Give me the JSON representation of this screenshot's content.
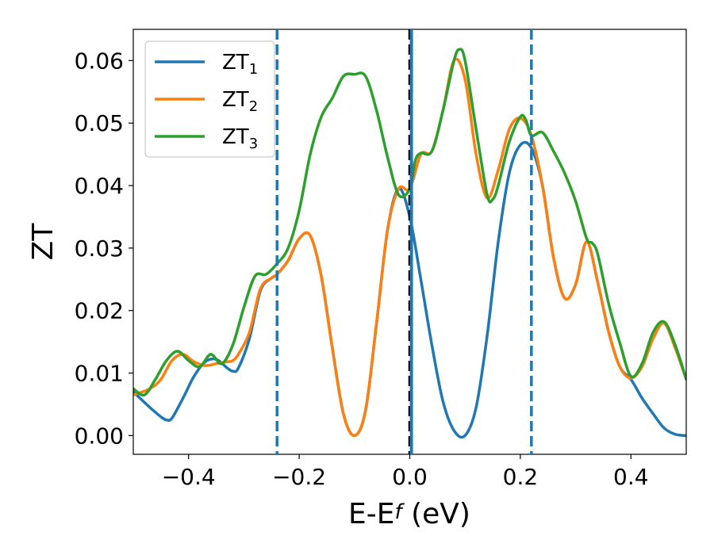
{
  "chart_data": {
    "type": "line",
    "title": "",
    "xlabel": {
      "main": "E-E",
      "sub": "f",
      "unit": " (eV)"
    },
    "ylabel": "ZT",
    "xlim": [
      -0.5,
      0.5
    ],
    "ylim": [
      -0.003,
      0.065
    ],
    "x_ticks": [
      -0.4,
      -0.2,
      0.0,
      0.2,
      0.4
    ],
    "x_tick_labels": [
      "−0.4",
      "−0.2",
      "0.0",
      "0.2",
      "0.4"
    ],
    "y_ticks": [
      0.0,
      0.01,
      0.02,
      0.03,
      0.04,
      0.05,
      0.06
    ],
    "y_tick_labels": [
      "0.00",
      "0.01",
      "0.02",
      "0.03",
      "0.04",
      "0.05",
      "0.06"
    ],
    "grid": false,
    "legend_position": "top-left",
    "vertical_lines": [
      {
        "x": -0.24,
        "color": "#1f77b4",
        "style": "dashed"
      },
      {
        "x": 0.0,
        "color": "#000000",
        "style": "dashed"
      },
      {
        "x": 0.003,
        "color": "#1f77b4",
        "style": "solid"
      },
      {
        "x": 0.22,
        "color": "#1f77b4",
        "style": "dashed"
      }
    ],
    "series": [
      {
        "name": "ZT",
        "sub": "1",
        "color": "#1f77b4",
        "x": [
          -0.5,
          -0.47,
          -0.45,
          -0.44,
          -0.43,
          -0.41,
          -0.39,
          -0.37,
          -0.35,
          -0.33,
          -0.32,
          -0.31,
          -0.29,
          -0.27,
          -0.25,
          -0.24,
          -0.22,
          -0.2,
          -0.18,
          -0.16,
          -0.14,
          -0.12,
          -0.1,
          -0.08,
          -0.06,
          -0.04,
          -0.02,
          0.0,
          0.02,
          0.04,
          0.06,
          0.08,
          0.1,
          0.12,
          0.14,
          0.16,
          0.18,
          0.2,
          0.22,
          0.24,
          0.26,
          0.28,
          0.3,
          0.32,
          0.34,
          0.36,
          0.38,
          0.4,
          0.42,
          0.44,
          0.46,
          0.48,
          0.5
        ],
        "y": [
          0.007,
          0.0045,
          0.003,
          0.0025,
          0.0028,
          0.006,
          0.0095,
          0.0118,
          0.0122,
          0.0108,
          0.0103,
          0.0108,
          0.0155,
          0.0232,
          0.0252,
          0.0258,
          0.028,
          0.0315,
          0.032,
          0.0255,
          0.014,
          0.0035,
          0.0,
          0.004,
          0.018,
          0.033,
          0.0395,
          0.035,
          0.025,
          0.0145,
          0.0055,
          0.0008,
          0.0,
          0.0045,
          0.016,
          0.031,
          0.042,
          0.0465,
          0.046,
          0.04,
          0.0285,
          0.022,
          0.0242,
          0.031,
          0.0245,
          0.0165,
          0.011,
          0.009,
          0.006,
          0.0035,
          0.0012,
          0.0002,
          0.0
        ]
      },
      {
        "name": "ZT",
        "sub": "2",
        "color": "#ff7f0e",
        "x": [
          -0.5,
          -0.47,
          -0.45,
          -0.43,
          -0.41,
          -0.39,
          -0.37,
          -0.35,
          -0.33,
          -0.32,
          -0.31,
          -0.29,
          -0.27,
          -0.25,
          -0.24,
          -0.22,
          -0.2,
          -0.18,
          -0.16,
          -0.14,
          -0.12,
          -0.1,
          -0.08,
          -0.06,
          -0.04,
          -0.02,
          0.0,
          0.02,
          0.04,
          0.06,
          0.08,
          0.1,
          0.12,
          0.14,
          0.16,
          0.18,
          0.2,
          0.22,
          0.24,
          0.26,
          0.28,
          0.3,
          0.32,
          0.34,
          0.36,
          0.38,
          0.4,
          0.42,
          0.44,
          0.46,
          0.48,
          0.5
        ],
        "y": [
          0.0065,
          0.0075,
          0.009,
          0.012,
          0.013,
          0.0118,
          0.0112,
          0.0115,
          0.0118,
          0.012,
          0.013,
          0.0165,
          0.0235,
          0.0252,
          0.0258,
          0.028,
          0.0315,
          0.032,
          0.0255,
          0.014,
          0.0035,
          0.0,
          0.004,
          0.018,
          0.033,
          0.0395,
          0.0395,
          0.045,
          0.0455,
          0.052,
          0.06,
          0.057,
          0.045,
          0.038,
          0.0425,
          0.049,
          0.0508,
          0.048,
          0.04,
          0.0285,
          0.022,
          0.0242,
          0.031,
          0.0245,
          0.0165,
          0.011,
          0.0092,
          0.011,
          0.0155,
          0.018,
          0.014,
          0.009
        ]
      },
      {
        "name": "ZT",
        "sub": "3",
        "color": "#2ca02c",
        "x": [
          -0.5,
          -0.48,
          -0.46,
          -0.44,
          -0.42,
          -0.4,
          -0.38,
          -0.36,
          -0.34,
          -0.32,
          -0.3,
          -0.28,
          -0.26,
          -0.24,
          -0.22,
          -0.2,
          -0.18,
          -0.16,
          -0.14,
          -0.12,
          -0.1,
          -0.08,
          -0.06,
          -0.04,
          -0.02,
          0.0,
          0.01,
          0.02,
          0.04,
          0.06,
          0.08,
          0.09,
          0.1,
          0.12,
          0.14,
          0.15,
          0.16,
          0.18,
          0.2,
          0.21,
          0.22,
          0.24,
          0.26,
          0.28,
          0.3,
          0.32,
          0.33,
          0.34,
          0.36,
          0.38,
          0.4,
          0.42,
          0.44,
          0.46,
          0.48,
          0.5
        ],
        "y": [
          0.0075,
          0.0065,
          0.009,
          0.012,
          0.0135,
          0.012,
          0.011,
          0.013,
          0.0115,
          0.0145,
          0.0205,
          0.0255,
          0.0258,
          0.0275,
          0.03,
          0.036,
          0.045,
          0.051,
          0.054,
          0.0575,
          0.0578,
          0.0575,
          0.052,
          0.0445,
          0.0385,
          0.0395,
          0.044,
          0.0452,
          0.0455,
          0.052,
          0.06,
          0.0618,
          0.06,
          0.049,
          0.0385,
          0.0378,
          0.04,
          0.047,
          0.051,
          0.0505,
          0.048,
          0.0485,
          0.0455,
          0.042,
          0.0375,
          0.0315,
          0.0308,
          0.029,
          0.021,
          0.0148,
          0.0095,
          0.0115,
          0.0165,
          0.0182,
          0.0145,
          0.009
        ]
      }
    ]
  }
}
